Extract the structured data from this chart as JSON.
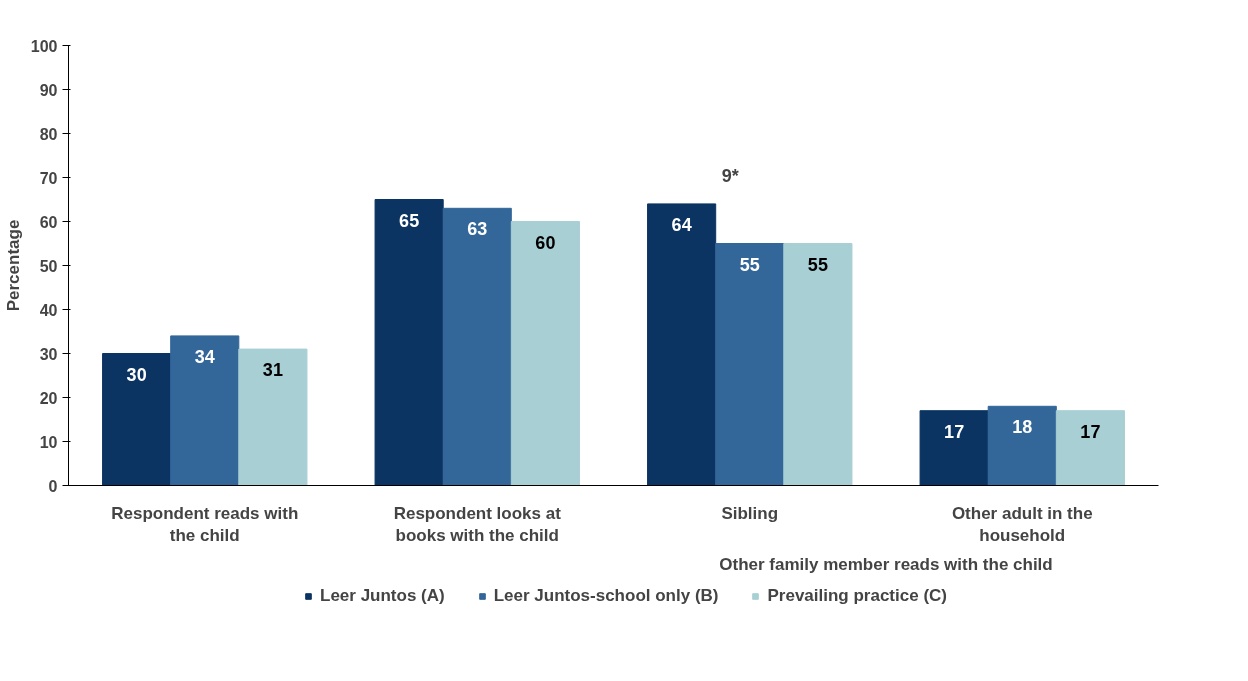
{
  "chart_data": {
    "type": "bar",
    "ylabel": "Percentage",
    "categories": [
      "Respondent reads with the child",
      "Respondent looks at books with the child",
      "Sibling",
      "Other adult in the household"
    ],
    "series": [
      {
        "name": "Leer Juntos (A)",
        "color": "#0b3462",
        "values": [
          30,
          65,
          64,
          17
        ]
      },
      {
        "name": "Leer Juntos-school only (B)",
        "color": "#336699",
        "values": [
          34,
          63,
          55,
          18
        ]
      },
      {
        "name": "Prevailing practice (C)",
        "color": "#a8cfd3",
        "values": [
          31,
          60,
          55,
          17
        ]
      }
    ],
    "ylim": [
      0,
      100
    ],
    "yticks": [
      0,
      10,
      20,
      30,
      40,
      50,
      60,
      70,
      80,
      90,
      100
    ],
    "data_labels": true,
    "grid": false,
    "legend": "bottom",
    "annotations": [
      "9*",
      "Other family member reads with the child"
    ]
  }
}
